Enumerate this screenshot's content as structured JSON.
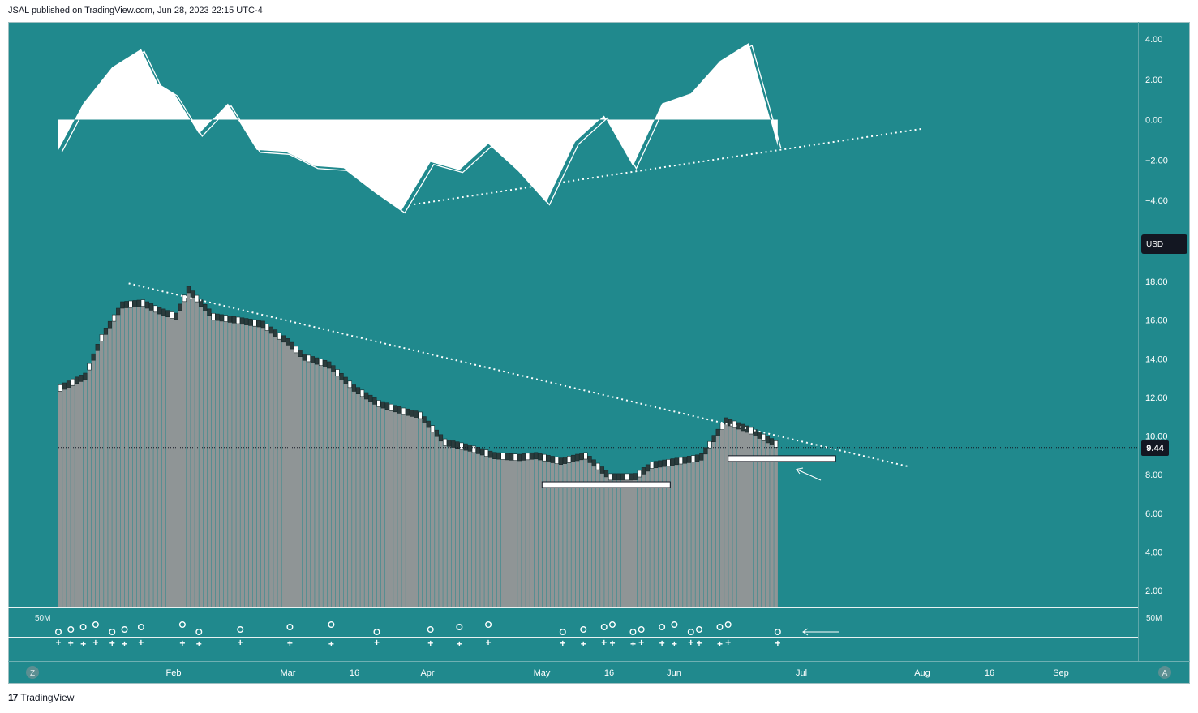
{
  "header": {
    "published_text": "JSAL published on TradingView.com, Jun 28, 2023 22:15 UTC-4"
  },
  "footer": {
    "brand": "TradingView",
    "logo_glyph": "17"
  },
  "colors": {
    "background": "#20898d",
    "bars": "#8f9596",
    "white": "#ffffff",
    "dark": "#1a2a2b"
  },
  "currency_badge": "USD",
  "last_price_label": "9.44",
  "x_axis_labels": [
    "Z",
    "Feb",
    "Mar",
    "16",
    "Apr",
    "May",
    "16",
    "Jun",
    "Jul",
    "Aug",
    "16",
    "Sep",
    "A"
  ],
  "volume_axis": {
    "left_label": "50M",
    "right_label": "50M"
  },
  "chart_data": [
    {
      "type": "area",
      "panel": "oscillator",
      "y_ticks": [
        "4.00",
        "2.00",
        "0.00",
        "−2.00",
        "−4.00"
      ],
      "ylim": [
        -5.4,
        4.5
      ],
      "x": [
        "2023-01-03",
        "2023-01-09",
        "2023-01-16",
        "2023-01-23",
        "2023-01-27",
        "2023-01-31",
        "2023-02-06",
        "2023-02-13",
        "2023-02-20",
        "2023-02-27",
        "2023-03-06",
        "2023-03-13",
        "2023-03-20",
        "2023-03-27",
        "2023-04-03",
        "2023-04-10",
        "2023-04-17",
        "2023-04-24",
        "2023-05-01",
        "2023-05-08",
        "2023-05-15",
        "2023-05-22",
        "2023-05-29",
        "2023-06-05",
        "2023-06-12",
        "2023-06-19",
        "2023-06-26"
      ],
      "series": [
        {
          "values": [
            -1.5,
            0.8,
            2.6,
            3.5,
            1.8,
            1.3,
            -0.7,
            0.8,
            -1.5,
            -1.6,
            -2.3,
            -2.4,
            -3.5,
            -4.5,
            -2.1,
            -2.5,
            -1.2,
            -2.5,
            -4.1,
            -1.1,
            0.2,
            -2.3,
            0.8,
            1.3,
            2.9,
            3.8,
            -1.3
          ]
        }
      ],
      "trendline": {
        "x": [
          "2023-03-30",
          "2023-07-31"
        ],
        "y": [
          -4.2,
          -0.45
        ]
      }
    },
    {
      "type": "bar",
      "panel": "price",
      "y_ticks": [
        "18.00",
        "16.00",
        "14.00",
        "12.00",
        "10.00",
        "8.00",
        "6.00",
        "4.00",
        "2.00"
      ],
      "ylim": [
        1.0,
        19.0
      ],
      "x": [
        "2023-01-03",
        "2023-01-09",
        "2023-01-13",
        "2023-01-18",
        "2023-01-23",
        "2023-01-27",
        "2023-01-31",
        "2023-02-03",
        "2023-02-09",
        "2023-02-15",
        "2023-02-21",
        "2023-02-27",
        "2023-03-03",
        "2023-03-09",
        "2023-03-15",
        "2023-03-21",
        "2023-03-27",
        "2023-03-31",
        "2023-04-06",
        "2023-04-12",
        "2023-04-18",
        "2023-04-24",
        "2023-04-28",
        "2023-05-04",
        "2023-05-10",
        "2023-05-16",
        "2023-05-22",
        "2023-05-26",
        "2023-06-01",
        "2023-06-07",
        "2023-06-13",
        "2023-06-19",
        "2023-06-26"
      ],
      "series": [
        {
          "values": [
            12.4,
            13.0,
            15.0,
            16.7,
            16.8,
            16.4,
            16.1,
            17.5,
            16.1,
            15.9,
            15.7,
            14.8,
            14.0,
            13.6,
            12.4,
            11.6,
            11.2,
            11.0,
            9.6,
            9.3,
            8.9,
            8.8,
            8.9,
            8.6,
            8.9,
            7.8,
            7.8,
            8.4,
            8.6,
            8.8,
            10.7,
            10.2,
            9.4
          ]
        }
      ],
      "trendline": {
        "x": [
          "2023-01-20",
          "2023-07-28"
        ],
        "y": [
          17.9,
          8.4
        ]
      },
      "support_zones": [
        {
          "x": [
            "2023-04-30",
            "2023-05-31"
          ],
          "y": 7.5
        },
        {
          "x": [
            "2023-06-14",
            "2023-07-10"
          ],
          "y": 8.85
        }
      ]
    },
    {
      "type": "scatter",
      "panel": "volume",
      "x": [
        "2023-01-03",
        "2023-01-06",
        "2023-01-09",
        "2023-01-12",
        "2023-01-16",
        "2023-01-19",
        "2023-01-23",
        "2023-02-02",
        "2023-02-06",
        "2023-02-16",
        "2023-02-28",
        "2023-03-10",
        "2023-03-21",
        "2023-04-03",
        "2023-04-10",
        "2023-04-17",
        "2023-05-05",
        "2023-05-10",
        "2023-05-15",
        "2023-05-17",
        "2023-05-22",
        "2023-05-24",
        "2023-05-29",
        "2023-06-01",
        "2023-06-05",
        "2023-06-07",
        "2023-06-12",
        "2023-06-14",
        "2023-06-26"
      ],
      "series": [
        {
          "values": [
            1,
            1,
            1,
            1,
            1,
            1,
            1,
            1,
            1,
            1,
            1,
            1,
            1,
            1,
            1,
            1,
            1,
            1,
            1,
            1,
            1,
            1,
            1,
            1,
            1,
            1,
            1,
            1,
            1
          ]
        }
      ]
    }
  ]
}
